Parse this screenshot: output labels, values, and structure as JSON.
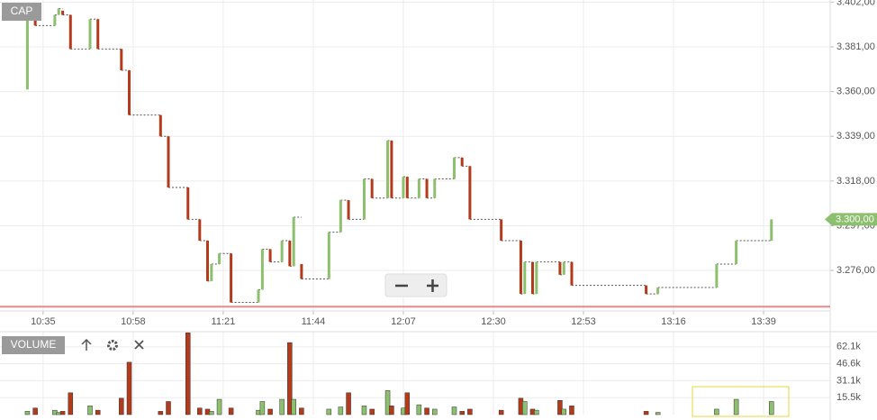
{
  "chart_data": {
    "type": "candlestick",
    "title": "CAP",
    "x": [
      631,
      633,
      638,
      639,
      640,
      642,
      647,
      649,
      655,
      657,
      665,
      667,
      672,
      675,
      677,
      678,
      680,
      683,
      690,
      691,
      693,
      696,
      698,
      699,
      701,
      708,
      711,
      713,
      717,
      719,
      723,
      724,
      727,
      728,
      731,
      733,
      735,
      740,
      742,
      744,
      752,
      757,
      758,
      760,
      761,
      767,
      768,
      770,
      789,
      792,
      807,
      812,
      821
    ],
    "open": [
      3361,
      3395,
      3391,
      3396,
      3398,
      3396,
      3380,
      3394,
      3380,
      3370,
      3349,
      3339,
      3315,
      3300,
      3290,
      3271,
      3279,
      3284,
      3261,
      3267,
      3286,
      3280,
      3290,
      3278,
      3279,
      3272,
      3294,
      3309,
      3300,
      3319,
      3310,
      3337,
      3310,
      3320,
      3310,
      3319,
      3310,
      3319,
      3329,
      3325,
      3300,
      3290,
      3265,
      3280,
      3265,
      3280,
      3274,
      3280,
      3269,
      3265,
      3268,
      3279,
      3290
    ],
    "close": [
      3395,
      3391,
      3396,
      3399,
      3396,
      3380,
      3394,
      3380,
      3370,
      3349,
      3339,
      3315,
      3300,
      3290,
      3271,
      3279,
      3284,
      3261,
      3267,
      3286,
      3280,
      3290,
      3278,
      3301,
      3272,
      3294,
      3309,
      3300,
      3319,
      3310,
      3337,
      3310,
      3320,
      3310,
      3319,
      3310,
      3319,
      3329,
      3325,
      3300,
      3290,
      3265,
      3280,
      3265,
      3280,
      3274,
      3280,
      3269,
      3265,
      3268,
      3279,
      3290,
      3300
    ],
    "up_color": "#8dc06e",
    "down_color": "#b33a1b",
    "xlim": [
      624,
      836
    ],
    "ylim": [
      3257,
      3403
    ],
    "grid": true,
    "yticks": [
      {
        "value": 3276,
        "label": "3.276,00"
      },
      {
        "value": 3297,
        "label": "3.297,00"
      },
      {
        "value": 3318,
        "label": "3.318,00"
      },
      {
        "value": 3339,
        "label": "3.339,00"
      },
      {
        "value": 3360,
        "label": "3.360,00"
      },
      {
        "value": 3381,
        "label": "3.381,00"
      },
      {
        "value": 3402,
        "label": "3.402,00"
      }
    ],
    "xticks": [
      {
        "value": 635,
        "label": "10:35"
      },
      {
        "value": 658,
        "label": "10:58"
      },
      {
        "value": 681,
        "label": "11:21"
      },
      {
        "value": 704,
        "label": "11:44"
      },
      {
        "value": 727,
        "label": "12:07"
      },
      {
        "value": 750,
        "label": "12:30"
      },
      {
        "value": 773,
        "label": "12:53"
      },
      {
        "value": 796,
        "label": "13:16"
      },
      {
        "value": 819,
        "label": "13:39"
      }
    ],
    "last_price": {
      "value": 3300,
      "label": "3.300,00"
    },
    "reference_line": 3259,
    "volume": {
      "title": "VOLUME",
      "values": [
        3000,
        6000,
        4000,
        2000,
        3000,
        20000,
        8000,
        4000,
        15000,
        48000,
        3000,
        12000,
        75000,
        6000,
        5000,
        3000,
        14000,
        6000,
        4000,
        12000,
        5000,
        14000,
        66000,
        14000,
        6000,
        5000,
        7000,
        20000,
        8000,
        5000,
        22000,
        8000,
        6000,
        20000,
        9000,
        6000,
        5000,
        7000,
        3000,
        5000,
        4000,
        15000,
        12000,
        5000,
        4000,
        13000,
        5000,
        8000,
        3000,
        2000,
        5000,
        14000,
        12000
      ],
      "ylim": [
        0,
        76000
      ],
      "yticks": [
        {
          "value": 15500,
          "label": "15.5k"
        },
        {
          "value": 31100,
          "label": "31.1k"
        },
        {
          "value": 46600,
          "label": "46.6k"
        },
        {
          "value": 62100,
          "label": "62.1k"
        }
      ]
    }
  }
}
